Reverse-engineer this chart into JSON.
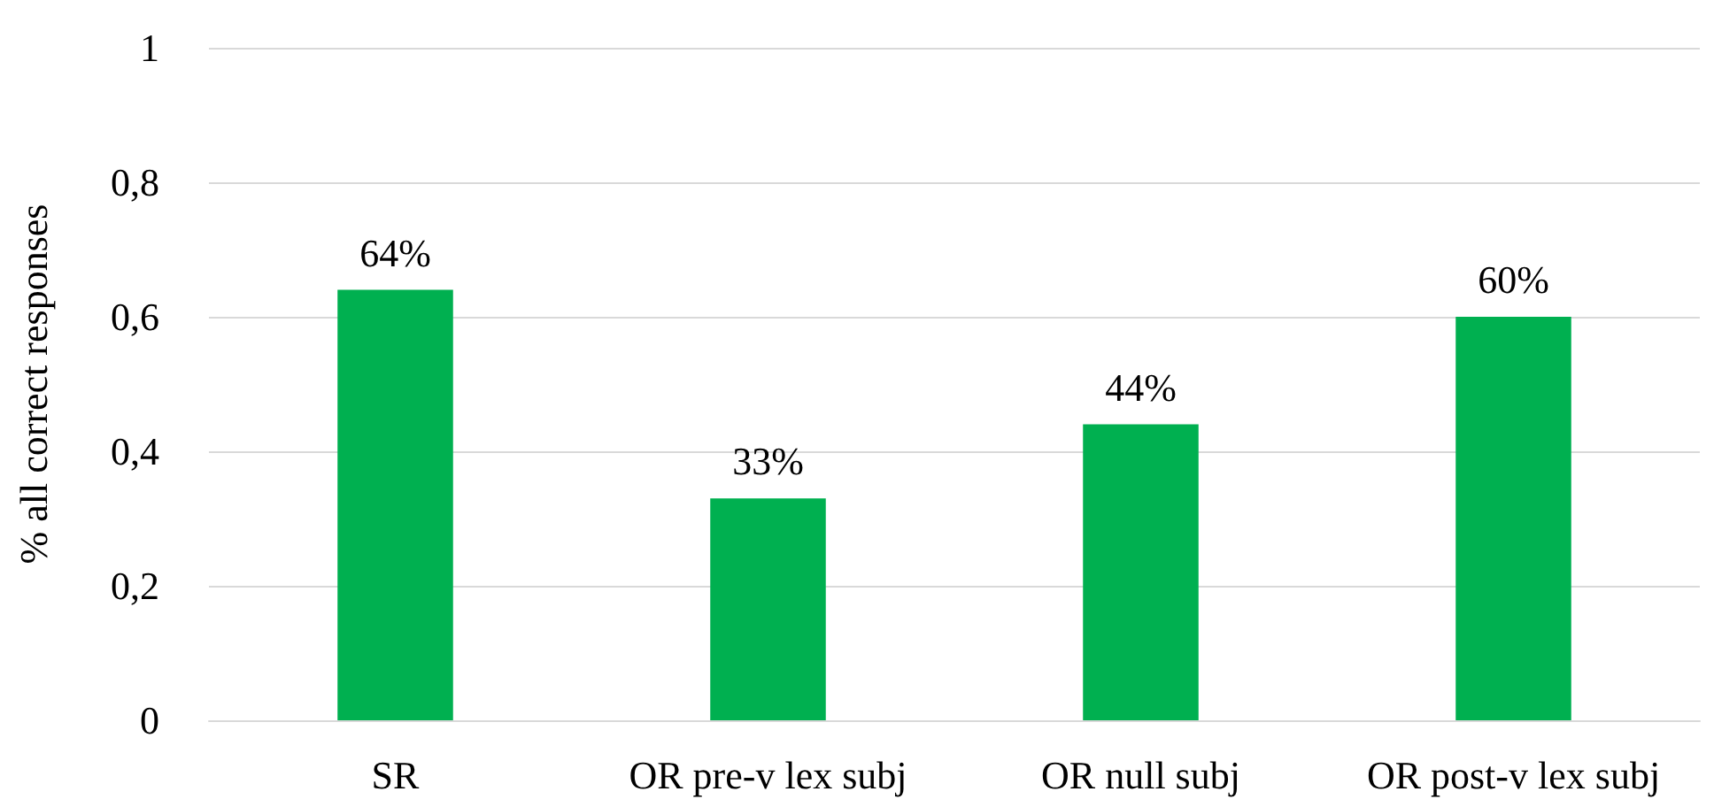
{
  "chart_data": {
    "type": "bar",
    "ylabel": "% all correct responses",
    "categories": [
      "SR",
      "OR pre-v lex subj",
      "OR null subj",
      "OR post-v lex subj"
    ],
    "values": [
      0.64,
      0.33,
      0.44,
      0.6
    ],
    "value_labels": [
      "64%",
      "33%",
      "44%",
      "60%"
    ],
    "color": "#00b050",
    "ylim": [
      0,
      1
    ],
    "yticks": [
      0,
      {
        "value": 0.2,
        "label": "0,2"
      },
      {
        "value": 0.4,
        "label": "0,4"
      },
      {
        "value": 0.6,
        "label": "0,6"
      },
      {
        "value": 0.8,
        "label": "0,8"
      },
      1
    ],
    "grid": "y"
  }
}
